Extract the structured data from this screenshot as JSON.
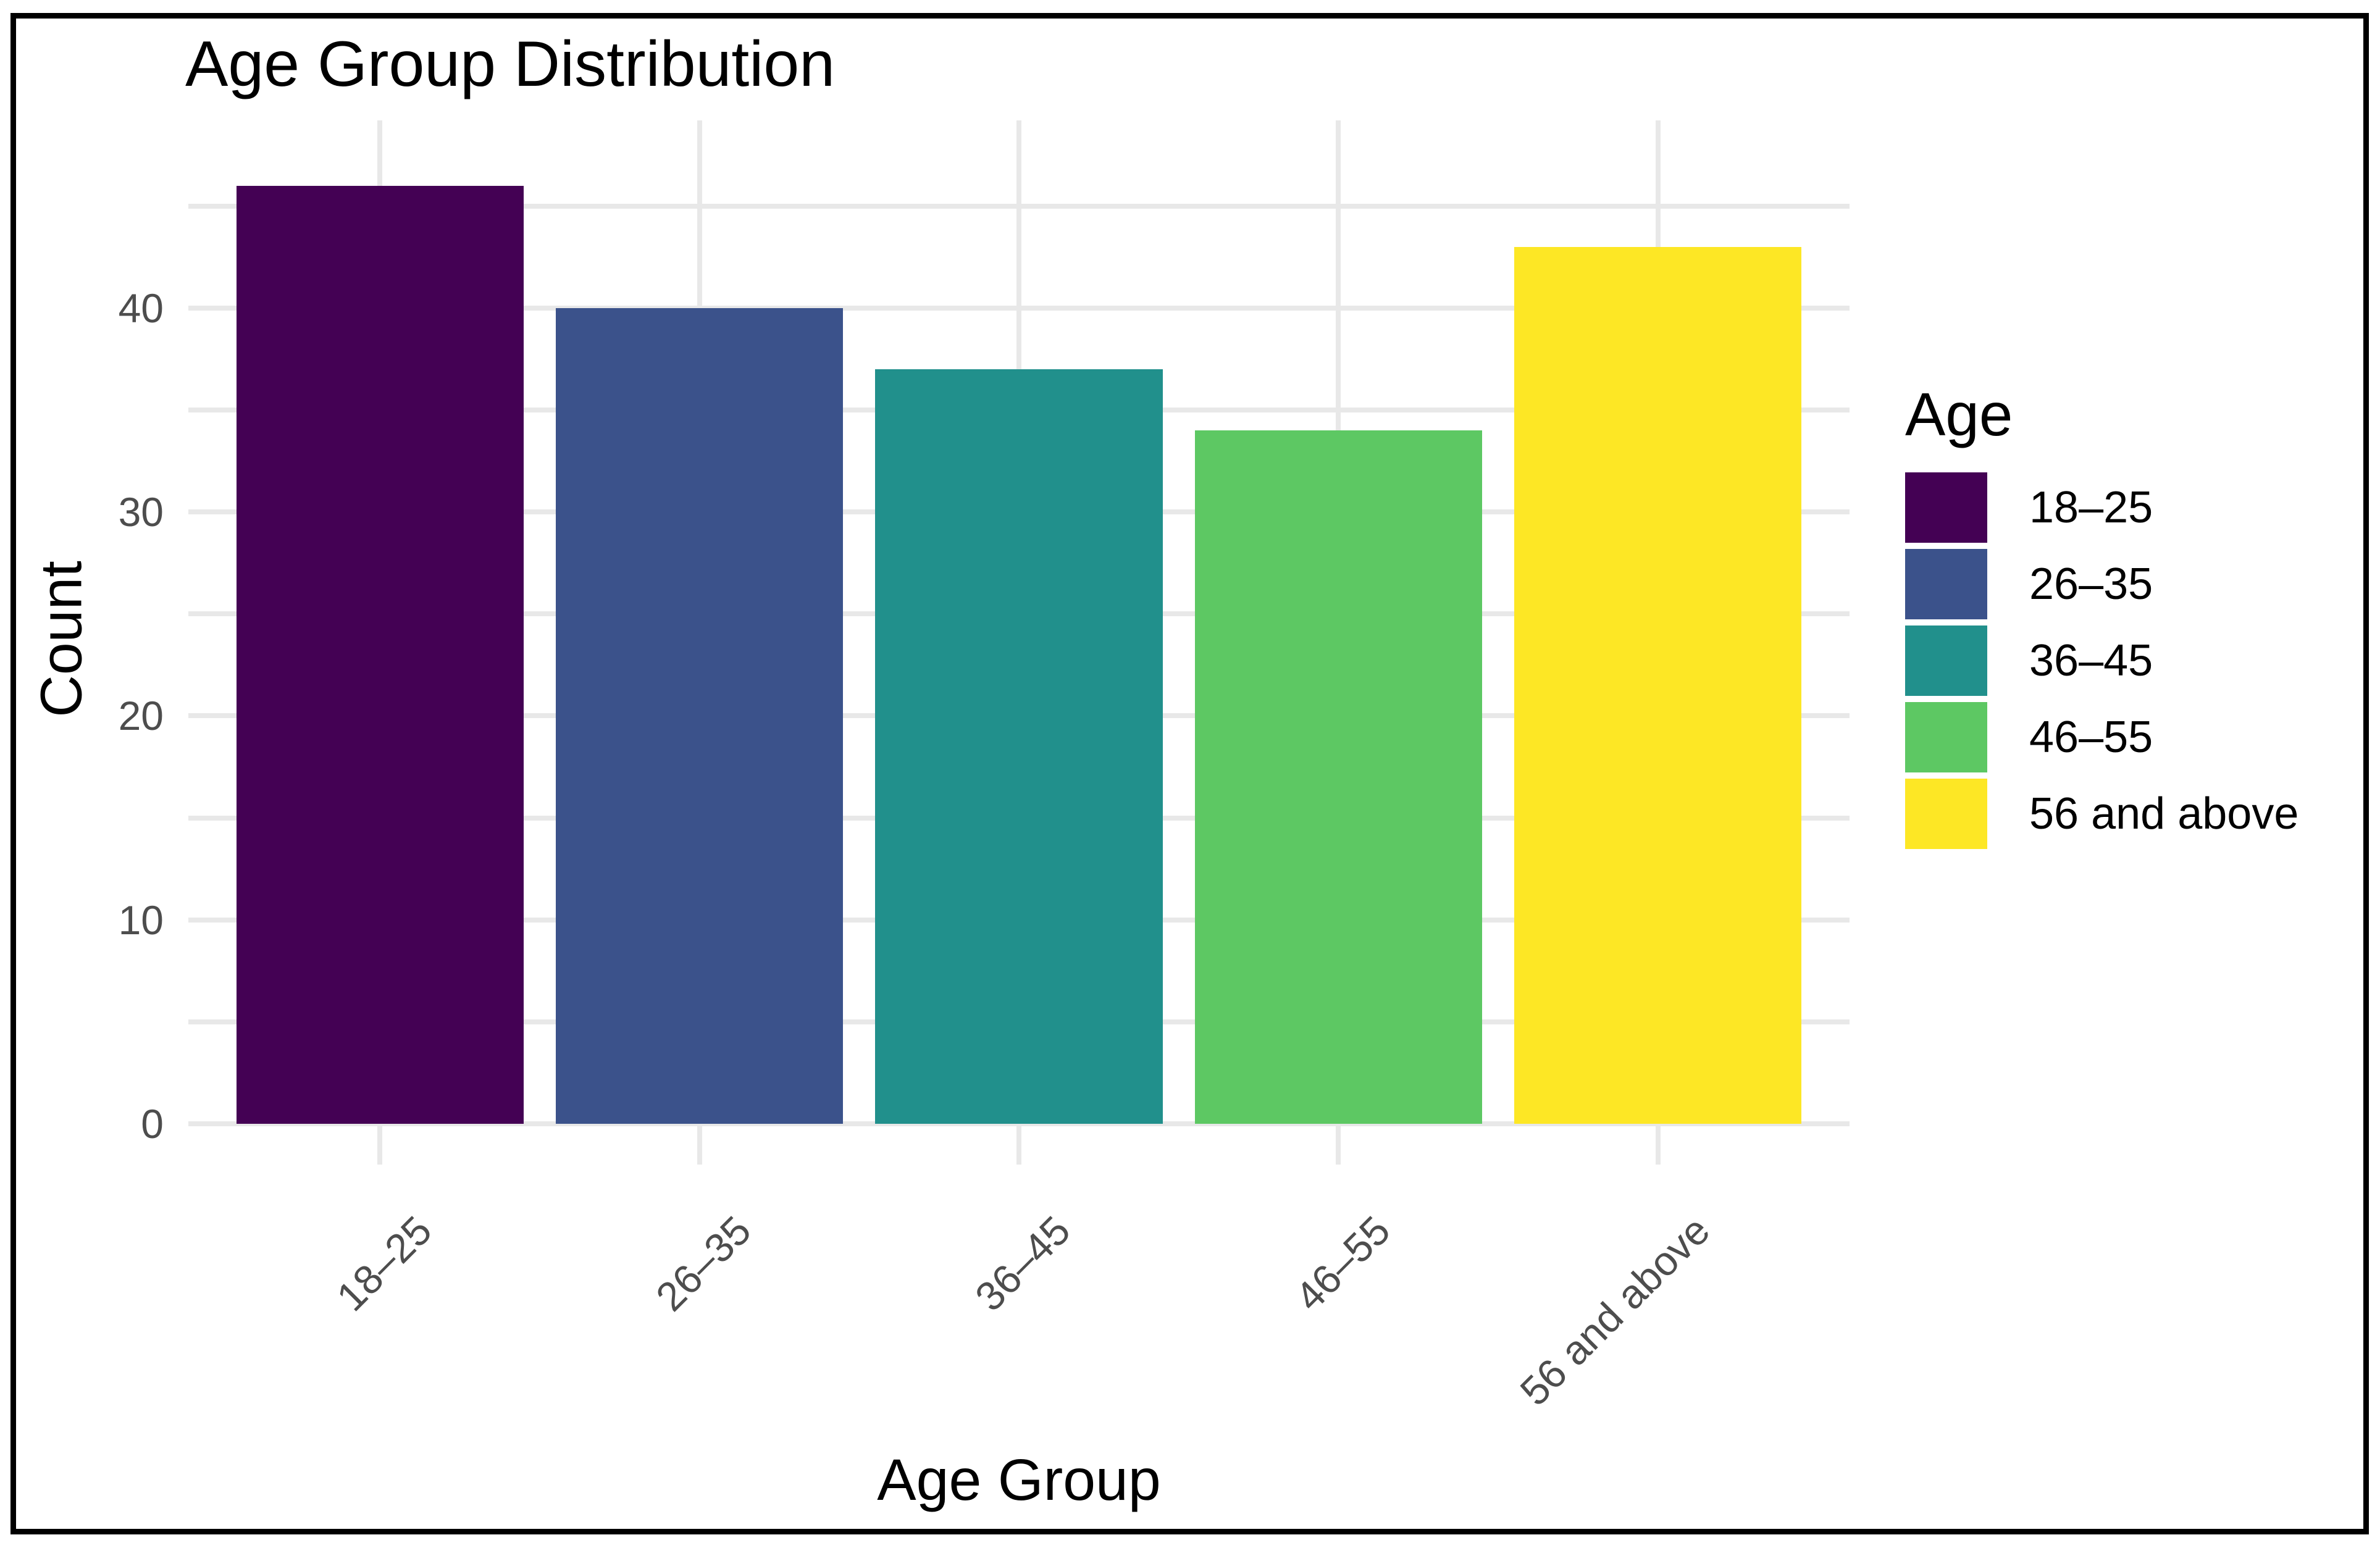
{
  "window": {
    "background": "#FFFFFF",
    "border_color": "#000000"
  },
  "chart_data": {
    "type": "bar",
    "title": "Age Group Distribution",
    "xlabel": "Age Group",
    "ylabel": "Count",
    "categories": [
      "18–25",
      "26–35",
      "36–45",
      "46–55",
      "56 and above"
    ],
    "values": [
      46,
      40,
      37,
      34,
      43
    ],
    "bar_colors": [
      "#440154",
      "#3B528B",
      "#21908C",
      "#5DC863",
      "#FDE725"
    ],
    "ylim": [
      0,
      49.2
    ],
    "y_major_ticks": [
      0,
      10,
      20,
      30,
      40
    ],
    "y_minor_ticks": [
      5,
      15,
      25,
      35,
      45
    ],
    "grid": "on",
    "gridline_color": "#E8E8E8",
    "tick_label_color": "#4D4D4D",
    "text_color": "#000000",
    "legend": {
      "title": "Age",
      "position": "right",
      "entries": [
        {
          "label": "18–25",
          "color": "#440154"
        },
        {
          "label": "26–35",
          "color": "#3B528B"
        },
        {
          "label": "36–45",
          "color": "#21908C"
        },
        {
          "label": "46–55",
          "color": "#5DC863"
        },
        {
          "label": "56 and above",
          "color": "#FDE725"
        }
      ]
    }
  }
}
